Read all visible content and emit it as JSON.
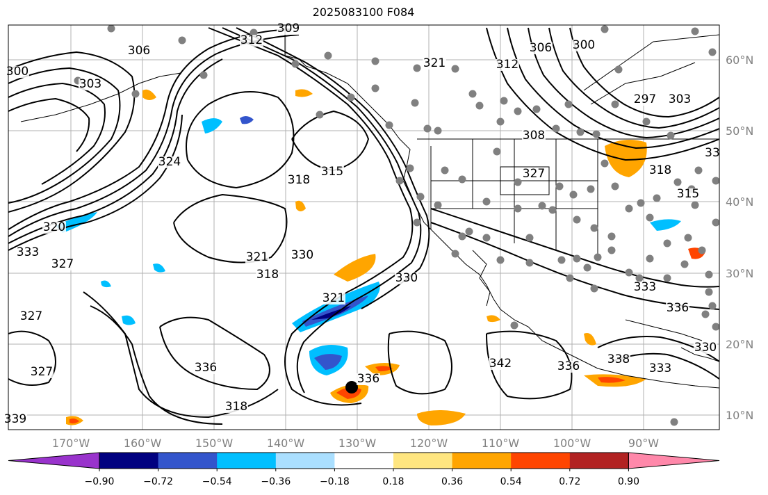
{
  "title": "2025083100 F084",
  "lon_ticks": [
    "170°W",
    "160°W",
    "150°W",
    "140°W",
    "130°W",
    "120°W",
    "110°W",
    "100°W",
    "90°W"
  ],
  "lat_ticks": [
    "60°N",
    "50°N",
    "40°N",
    "30°N",
    "20°N",
    "10°N"
  ],
  "contour_labels": [
    "309",
    "312",
    "306",
    "303",
    "300",
    "321",
    "312",
    "306",
    "300",
    "297",
    "303",
    "324",
    "315",
    "318",
    "308",
    "327",
    "318",
    "315",
    "320",
    "330",
    "333",
    "327",
    "321",
    "318",
    "330",
    "327",
    "321",
    "333",
    "336",
    "327",
    "336",
    "318",
    "338",
    "342",
    "336",
    "333",
    "330",
    "336",
    "339",
    "33"
  ],
  "colorbar": {
    "tick_labels": [
      "−0.90",
      "−0.72",
      "−0.54",
      "−0.36",
      "−0.18",
      "0.18",
      "0.36",
      "0.54",
      "0.72",
      "0.90"
    ],
    "colors": [
      "#9933cc",
      "#000080",
      "#3355cc",
      "#00bfff",
      "#aadfff",
      "#ffffff",
      "#ffe680",
      "#ffa500",
      "#ff4500",
      "#b22222",
      "#ff88aa"
    ]
  }
}
